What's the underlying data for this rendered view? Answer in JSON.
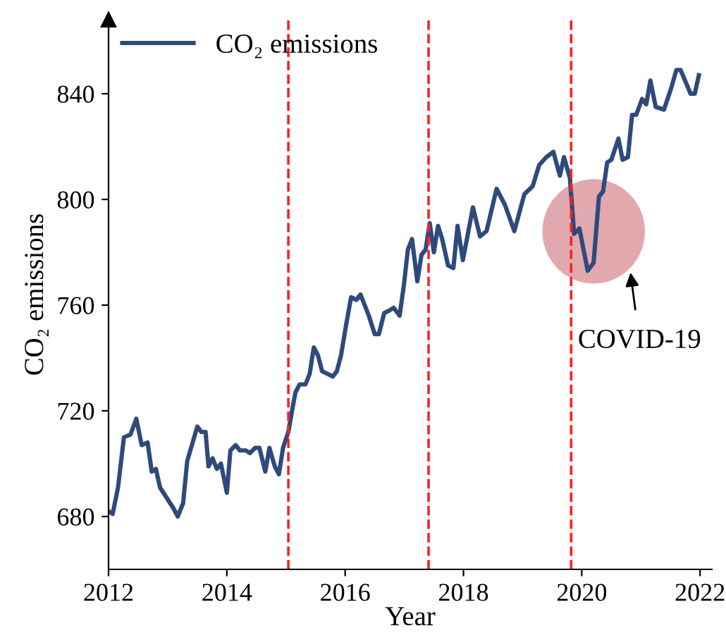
{
  "chart_data": {
    "type": "line",
    "xlabel": "Year",
    "ylabel": "CO₂ emissions",
    "x": [
      2012.0,
      2012.07,
      2012.16,
      2012.26,
      2012.37,
      2012.47,
      2012.56,
      2012.66,
      2012.73,
      2012.8,
      2012.87,
      2013.1,
      2013.17,
      2013.26,
      2013.33,
      2013.5,
      2013.57,
      2013.64,
      2013.69,
      2013.76,
      2013.83,
      2013.9,
      2014.0,
      2014.06,
      2014.15,
      2014.22,
      2014.32,
      2014.39,
      2014.48,
      2014.55,
      2014.65,
      2014.72,
      2014.81,
      2014.88,
      2014.95,
      2015.04,
      2015.11,
      2015.16,
      2015.23,
      2015.33,
      2015.4,
      2015.47,
      2015.54,
      2015.61,
      2015.7,
      2015.79,
      2015.86,
      2015.93,
      2016.02,
      2016.1,
      2016.19,
      2016.26,
      2016.33,
      2016.4,
      2016.5,
      2016.57,
      2016.66,
      2016.75,
      2016.82,
      2016.92,
      2016.99,
      2017.06,
      2017.13,
      2017.22,
      2017.29,
      2017.36,
      2017.43,
      2017.5,
      2017.57,
      2017.64,
      2017.74,
      2017.83,
      2017.9,
      2017.99,
      2018.16,
      2018.28,
      2018.39,
      2018.56,
      2018.7,
      2018.86,
      2019.03,
      2019.17,
      2019.28,
      2019.4,
      2019.52,
      2019.63,
      2019.7,
      2019.8,
      2019.87,
      2019.96,
      2020.1,
      2020.2,
      2020.29,
      2020.36,
      2020.43,
      2020.5,
      2020.62,
      2020.69,
      2020.78,
      2020.85,
      2020.92,
      2021.02,
      2021.09,
      2021.16,
      2021.25,
      2021.39,
      2021.51,
      2021.6,
      2021.67,
      2021.84,
      2021.91,
      2021.98
    ],
    "series": [
      {
        "name": "CO₂ emissions",
        "color": "#2e4a7d",
        "values": [
          682,
          681,
          691,
          710,
          711,
          717,
          707,
          708,
          697,
          698,
          691,
          683,
          680,
          685,
          701,
          714,
          712,
          712,
          699,
          702,
          698,
          700,
          689,
          705,
          707,
          705,
          705,
          704,
          706,
          706,
          697,
          706,
          699,
          696,
          706,
          712,
          721,
          727,
          730,
          730,
          734,
          744,
          741,
          735,
          734,
          733,
          735,
          741,
          753,
          763,
          762,
          764,
          760,
          756,
          749,
          749,
          757,
          758,
          759,
          756,
          767,
          781,
          785,
          769,
          779,
          781,
          791,
          780,
          790,
          785,
          775,
          774,
          790,
          777,
          797,
          786,
          788,
          804,
          798,
          788,
          802,
          805,
          813,
          816,
          818,
          809,
          816,
          808,
          787,
          789,
          773,
          776,
          801,
          803,
          814,
          815,
          823,
          815,
          816,
          832,
          832,
          838,
          836,
          845,
          835,
          834,
          842,
          849,
          849,
          840,
          840,
          847
        ]
      }
    ],
    "xlim": [
      2012,
      2022.2
    ],
    "xticks": [
      2012,
      2014,
      2016,
      2018,
      2020,
      2022
    ],
    "ylim": [
      660,
      868
    ],
    "yticks": [
      680,
      720,
      760,
      800,
      840
    ],
    "ref_lines": [
      {
        "axis": "x",
        "value": 2015.04,
        "color": "#ff2020",
        "line_style": "dashed"
      },
      {
        "axis": "x",
        "value": 2017.41,
        "color": "#ff2020",
        "line_style": "dashed"
      },
      {
        "axis": "x",
        "value": 2019.82,
        "color": "#ff2020",
        "line_style": "dashed"
      }
    ],
    "annotations": [
      "COVID-19"
    ],
    "legend": "top left",
    "grid": false,
    "marker": "none",
    "line_style": "solid"
  }
}
